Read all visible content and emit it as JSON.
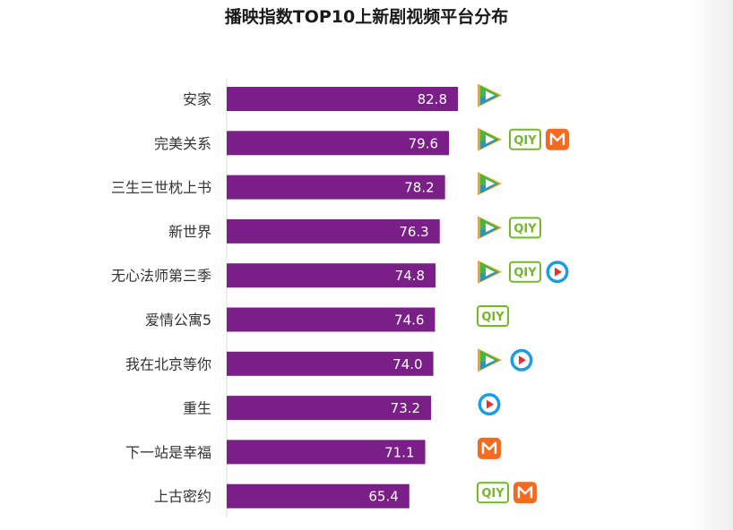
{
  "colors": {
    "bar": "#7a1f87",
    "axis": "#dddddd",
    "tencent_green": "#43b549",
    "tencent_blue": "#1f8ee0",
    "tencent_orange": "#f5a21c",
    "iqiyi_green": "#74b72a",
    "mgtv_orange": "#f26b21",
    "youku_blue": "#1e9ce0"
  },
  "chart_data": {
    "type": "bar",
    "orientation": "horizontal",
    "title": "播映指数TOP10上新剧视频平台分布",
    "categories": [
      "安家",
      "完美关系",
      "三生三世枕上书",
      "新世界",
      "无心法师第三季",
      "爱情公寓5",
      "我在北京等你",
      "重生",
      "下一站是幸福",
      "上古密约"
    ],
    "values": [
      82.8,
      79.6,
      78.2,
      76.3,
      74.8,
      74.6,
      74.0,
      73.2,
      71.1,
      65.4
    ],
    "value_labels": [
      "82.8",
      "79.6",
      "78.2",
      "76.3",
      "74.8",
      "74.6",
      "74.0",
      "73.2",
      "71.1",
      "65.4"
    ],
    "platform_icons": [
      [
        "tencent-video-icon"
      ],
      [
        "tencent-video-icon",
        "iqiyi-icon",
        "mgtv-icon"
      ],
      [
        "tencent-video-icon"
      ],
      [
        "tencent-video-icon",
        "iqiyi-icon"
      ],
      [
        "tencent-video-icon",
        "iqiyi-icon",
        "youku-icon"
      ],
      [
        "iqiyi-icon"
      ],
      [
        "tencent-video-icon",
        "youku-icon"
      ],
      [
        "youku-icon"
      ],
      [
        "mgtv-icon"
      ],
      [
        "iqiyi-icon",
        "mgtv-icon"
      ]
    ],
    "iqiyi_text": "QIY",
    "xlim": [
      0,
      82.8
    ],
    "grid": false,
    "legend": false
  }
}
